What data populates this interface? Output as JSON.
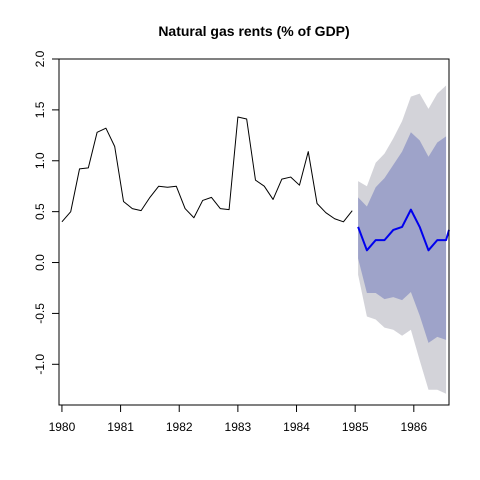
{
  "chart_data": {
    "type": "line",
    "title": "Natural gas rents (% of GDP)",
    "xlabel": "",
    "ylabel": "",
    "xlim": [
      1979.95,
      1986.6
    ],
    "ylim": [
      -1.4,
      2.0
    ],
    "x_ticks": [
      1980,
      1981,
      1982,
      1983,
      1984,
      1985,
      1986
    ],
    "y_ticks": [
      -1.0,
      -0.5,
      0.0,
      0.5,
      1.0,
      1.5,
      2.0
    ],
    "y_tick_labels": [
      "-1.0",
      "-0.5",
      "0.0",
      "0.5",
      "1.0",
      "1.5",
      "2.0"
    ],
    "grid": false,
    "series": [
      {
        "role": "historical",
        "color": "#000000",
        "x": [
          1980.0,
          1980.15,
          1980.3,
          1980.45,
          1980.6,
          1980.75,
          1980.9,
          1981.05,
          1981.2,
          1981.35,
          1981.5,
          1981.65,
          1981.8,
          1981.95,
          1982.1,
          1982.25,
          1982.4,
          1982.55,
          1982.7,
          1982.85,
          1983.0,
          1983.15,
          1983.3,
          1983.45,
          1983.6,
          1983.75,
          1983.9,
          1984.05,
          1984.2,
          1984.35,
          1984.5,
          1984.65,
          1984.8,
          1984.95
        ],
        "values": [
          0.4,
          0.5,
          0.92,
          0.93,
          1.28,
          1.32,
          1.14,
          0.6,
          0.53,
          0.51,
          0.64,
          0.75,
          0.74,
          0.75,
          0.53,
          0.44,
          0.61,
          0.64,
          0.53,
          0.52,
          1.43,
          1.41,
          0.81,
          0.75,
          0.62,
          0.82,
          0.84,
          0.76,
          1.09,
          0.58,
          0.49,
          0.43,
          0.4,
          0.51
        ]
      },
      {
        "role": "forecast",
        "color": "#0000ee",
        "x": [
          1985.05,
          1985.2,
          1985.35,
          1985.5,
          1985.65,
          1985.8,
          1985.95,
          1986.1,
          1986.25,
          1986.4,
          1986.55
        ],
        "values": [
          0.35,
          0.12,
          0.22,
          0.22,
          0.32,
          0.35,
          0.52,
          0.35,
          0.12,
          0.22,
          0.22
        ],
        "extra_points": [
          [
            1986.6,
            0.32
          ]
        ],
        "band_80": {
          "color": "#9ea3c9",
          "upper": [
            0.64,
            0.55,
            0.74,
            0.83,
            0.96,
            1.09,
            1.28,
            1.2,
            1.04,
            1.18,
            1.24
          ],
          "lower": [
            0.04,
            -0.3,
            -0.3,
            -0.36,
            -0.34,
            -0.37,
            -0.29,
            -0.52,
            -0.79,
            -0.73,
            -0.76
          ]
        },
        "band_95": {
          "color": "#d3d3d9",
          "upper": [
            0.8,
            0.75,
            0.98,
            1.07,
            1.22,
            1.39,
            1.63,
            1.66,
            1.51,
            1.66,
            1.74
          ],
          "lower": [
            -0.12,
            -0.53,
            -0.56,
            -0.64,
            -0.66,
            -0.72,
            -0.66,
            -0.96,
            -1.25,
            -1.25,
            -1.29
          ]
        }
      }
    ]
  }
}
